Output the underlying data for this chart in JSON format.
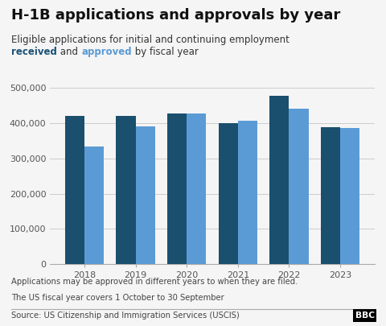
{
  "title": "H-1B applications and approvals by year",
  "subtitle_line1": "Eligible applications for initial and continuing employment",
  "subtitle_line2_parts": [
    {
      "text": "received",
      "color": "#1a5276",
      "bold": true
    },
    {
      "text": " and ",
      "color": "#333333",
      "bold": false
    },
    {
      "text": "approved",
      "color": "#5b9bd5",
      "bold": true
    },
    {
      "text": " by fiscal year",
      "color": "#333333",
      "bold": false
    }
  ],
  "years": [
    "2018",
    "2019",
    "2020",
    "2021",
    "2022",
    "2023"
  ],
  "received": [
    420000,
    420000,
    428000,
    400000,
    478000,
    388000
  ],
  "approved": [
    335000,
    390000,
    427000,
    408000,
    442000,
    386000
  ],
  "received_color": "#1a4f6e",
  "approved_color": "#5b9bd5",
  "ylim": [
    0,
    500000
  ],
  "yticks": [
    0,
    100000,
    200000,
    300000,
    400000,
    500000
  ],
  "ytick_labels": [
    "0",
    "100,000",
    "200,000",
    "300,000",
    "400,000",
    "500,000"
  ],
  "footnote1": "Applications may be approved in different years to when they are filed.",
  "footnote2": "The US fiscal year covers 1 October to 30 September",
  "source": "Source: US Citizenship and Immigration Services (USCIS)",
  "bbc_logo": "BBC",
  "bg_color": "#f5f5f5",
  "bar_width": 0.38,
  "title_fontsize": 13,
  "subtitle_fontsize": 8.5,
  "tick_fontsize": 8,
  "footnote_fontsize": 7.2,
  "source_fontsize": 7.2
}
